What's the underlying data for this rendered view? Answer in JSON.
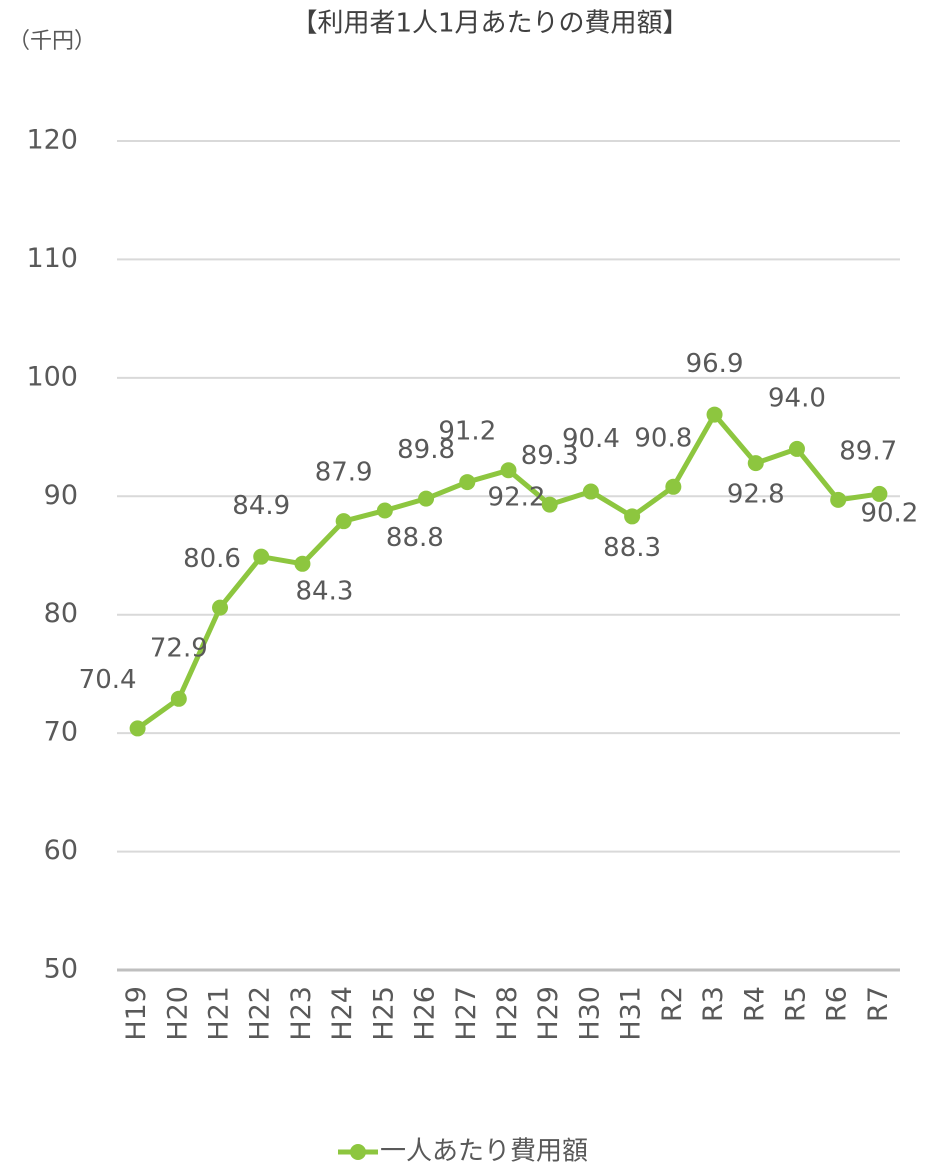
{
  "chart_data": {
    "type": "line",
    "title": "【利用者1人1月あたりの費用額】",
    "y_axis_label": "（千円）",
    "categories": [
      "H19",
      "H20",
      "H21",
      "H22",
      "H23",
      "H24",
      "H25",
      "H26",
      "H27",
      "H28",
      "H29",
      "H30",
      "H31",
      "R2",
      "R3",
      "R4",
      "R5",
      "R6",
      "R7"
    ],
    "series": [
      {
        "name": "一人あたり費用額",
        "color": "#8dc63f",
        "values": [
          70.4,
          72.9,
          80.6,
          84.9,
          84.3,
          87.9,
          88.8,
          89.8,
          91.2,
          92.2,
          89.3,
          90.4,
          88.3,
          90.8,
          96.9,
          92.8,
          94.0,
          89.7,
          90.2
        ],
        "value_labels": [
          "70.4",
          "72.9",
          "80.6",
          "84.9",
          "84.3",
          "87.9",
          "88.8",
          "89.8",
          "91.2",
          "92.2",
          "89.3",
          "90.4",
          "88.3",
          "90.8",
          "96.9",
          "92.8",
          "94.0",
          "89.7",
          "90.2"
        ]
      }
    ],
    "ylim": [
      50,
      120
    ],
    "yticks": [
      50,
      60,
      70,
      80,
      90,
      100,
      110,
      120
    ],
    "grid": true,
    "legend": "bottom"
  }
}
